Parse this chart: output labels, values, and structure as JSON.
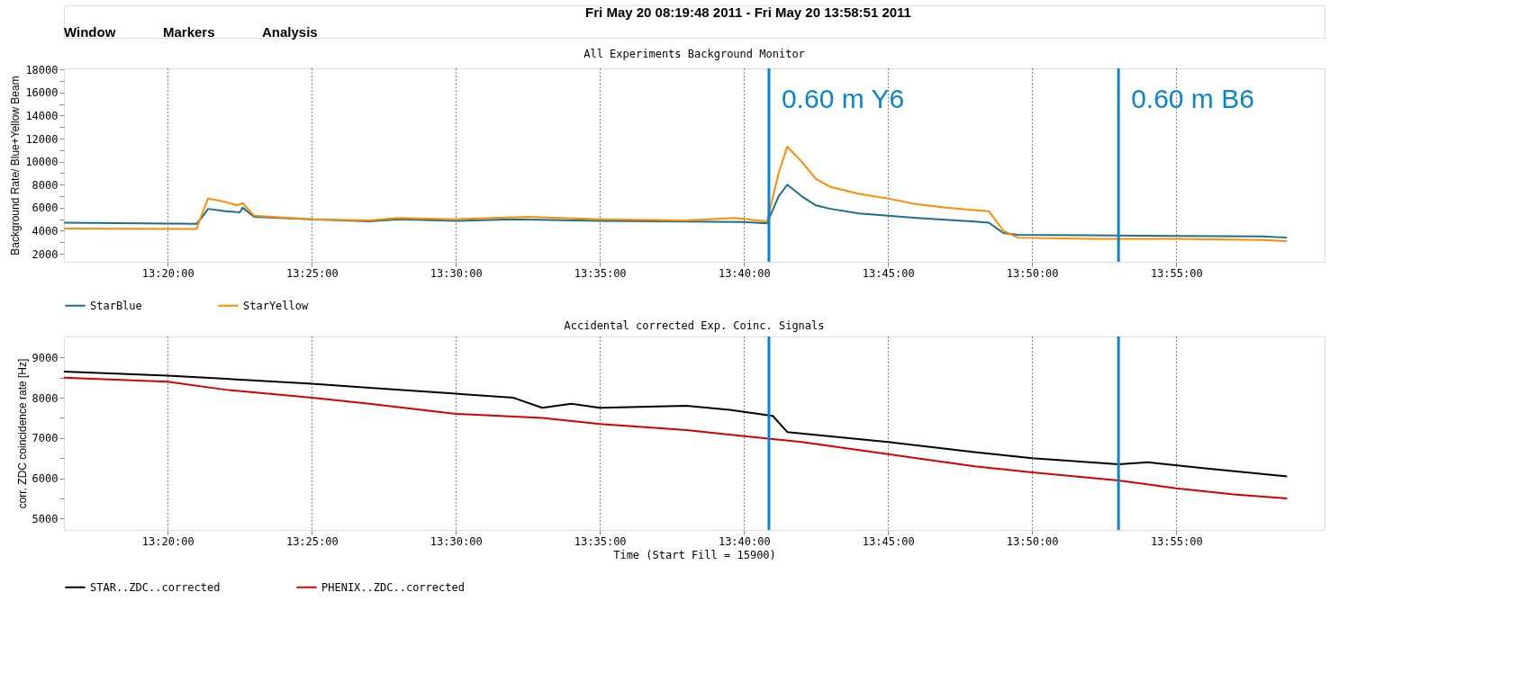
{
  "chart_data": [
    {
      "type": "line",
      "title": "All Experiments Background Monitor",
      "ylabel": "Background Rate/ Blue+Yellow Beam",
      "annotations": [
        "Fri May 20 08:19:48 2011 - Fri May 20 13:58:51 2011",
        "Window",
        "Markers",
        "Analysis"
      ],
      "series": [
        {
          "name": "StarBlue",
          "color": "#1a6e8e",
          "x": [
            13.2733,
            13.35,
            13.3533,
            13.3567,
            13.3667,
            13.375,
            13.3767,
            13.3833,
            13.4167,
            13.45,
            13.4667,
            13.5,
            13.5333,
            13.5833,
            13.6333,
            13.6667,
            13.68,
            13.6867,
            13.6917,
            13.7,
            13.7083,
            13.7167,
            13.7333,
            13.75,
            13.7667,
            13.7833,
            13.8,
            13.8083,
            13.8167,
            13.825,
            13.8667,
            13.9167,
            13.9667,
            13.9808
          ],
          "values": [
            4700,
            4600,
            5200,
            5900,
            5700,
            5600,
            6000,
            5200,
            5000,
            4820,
            5000,
            4850,
            5000,
            4850,
            4800,
            4750,
            4650,
            7000,
            8000,
            7000,
            6200,
            5900,
            5500,
            5300,
            5100,
            4950,
            4800,
            4700,
            3800,
            3650,
            3600,
            3550,
            3500,
            3400
          ]
        },
        {
          "name": "StarYellow",
          "color": "#ff8c00",
          "x": [
            13.2733,
            13.35,
            13.3533,
            13.3567,
            13.3667,
            13.3733,
            13.3767,
            13.3833,
            13.4167,
            13.45,
            13.4667,
            13.5,
            13.5417,
            13.5833,
            13.6333,
            13.6617,
            13.68,
            13.6867,
            13.6917,
            13.7,
            13.7083,
            13.7167,
            13.7333,
            13.75,
            13.7667,
            13.7833,
            13.8,
            13.8083,
            13.8167,
            13.825,
            13.8667,
            13.9167,
            13.9667,
            13.9808
          ],
          "values": [
            4200,
            4150,
            5500,
            6800,
            6500,
            6200,
            6400,
            5300,
            5000,
            4900,
            5100,
            5000,
            5200,
            5000,
            4900,
            5100,
            4800,
            9000,
            11300,
            10000,
            8500,
            7800,
            7200,
            6800,
            6300,
            6000,
            5800,
            5700,
            4000,
            3400,
            3300,
            3300,
            3200,
            3100
          ]
        }
      ],
      "xlim": [
        13.2733,
        14.0025
      ],
      "xticks": [
        {
          "value": 13.3333,
          "label": "13:20:00"
        },
        {
          "value": 13.4167,
          "label": "13:25:00"
        },
        {
          "value": 13.5,
          "label": "13:30:00"
        },
        {
          "value": 13.5833,
          "label": "13:35:00"
        },
        {
          "value": 13.6667,
          "label": "13:40:00"
        },
        {
          "value": 13.75,
          "label": "13:45:00"
        },
        {
          "value": 13.8333,
          "label": "13:50:00"
        },
        {
          "value": 13.9167,
          "label": "13:55:00"
        }
      ],
      "ylim": [
        1300,
        18100
      ],
      "yticks": [
        2000,
        {
          "value": 3000,
          "label": null
        },
        4000,
        {
          "value": 5000,
          "label": null
        },
        6000,
        {
          "value": 7000,
          "label": null
        },
        8000,
        {
          "value": 9000,
          "label": null
        },
        10000,
        {
          "value": 11000,
          "label": null
        },
        12000,
        {
          "value": 13000,
          "label": null
        },
        14000,
        {
          "value": 15000,
          "label": null
        },
        16000,
        {
          "value": 17000,
          "label": null
        },
        18000
      ],
      "ref_lines": [
        {
          "axis": "x",
          "value": 13.6811,
          "label": "0.60 m Y6",
          "color": "#0a84cc"
        },
        {
          "axis": "x",
          "value": 13.8833,
          "label": "0.60 m B6",
          "color": "#0a84cc"
        }
      ],
      "grid": "x",
      "legend": "bottom",
      "marker": "none",
      "line_style": "solid"
    },
    {
      "type": "line",
      "title": "Accidental corrected Exp. Coinc. Signals",
      "xlabel": "Time (Start Fill = 15900)",
      "ylabel": "corr. ZDC coincidence rate [Hz]",
      "series": [
        {
          "name": "STAR..ZDC..corrected",
          "color": "#000000",
          "x": [
            13.2733,
            13.3333,
            13.4167,
            13.45,
            13.5,
            13.5333,
            13.55,
            13.5667,
            13.5833,
            13.6333,
            13.6583,
            13.6833,
            13.6917,
            13.75,
            13.8,
            13.8333,
            13.8833,
            13.9,
            13.9333,
            13.9808
          ],
          "values": [
            8650,
            8550,
            8350,
            8250,
            8100,
            8000,
            7750,
            7850,
            7750,
            7800,
            7700,
            7550,
            7150,
            6900,
            6650,
            6500,
            6350,
            6400,
            6250,
            6050
          ]
        },
        {
          "name": "PHENIX..ZDC..corrected",
          "color": "#d40000",
          "x": [
            13.2733,
            13.3333,
            13.3667,
            13.4167,
            13.45,
            13.5,
            13.55,
            13.5833,
            13.6333,
            13.6667,
            13.7,
            13.75,
            13.8,
            13.8333,
            13.8833,
            13.9167,
            13.95,
            13.9808
          ],
          "values": [
            8500,
            8400,
            8200,
            8000,
            7850,
            7600,
            7500,
            7350,
            7200,
            7050,
            6900,
            6600,
            6300,
            6150,
            5950,
            5750,
            5600,
            5500
          ]
        }
      ],
      "xlim": [
        13.2733,
        14.0025
      ],
      "xticks": [
        {
          "value": 13.3333,
          "label": "13:20:00"
        },
        {
          "value": 13.4167,
          "label": "13:25:00"
        },
        {
          "value": 13.5,
          "label": "13:30:00"
        },
        {
          "value": 13.5833,
          "label": "13:35:00"
        },
        {
          "value": 13.6667,
          "label": "13:40:00"
        },
        {
          "value": 13.75,
          "label": "13:45:00"
        },
        {
          "value": 13.8333,
          "label": "13:50:00"
        },
        {
          "value": 13.9167,
          "label": "13:55:00"
        }
      ],
      "ylim": [
        4720,
        9520
      ],
      "yticks": [
        5000,
        {
          "value": 5500,
          "label": null
        },
        6000,
        {
          "value": 6500,
          "label": null
        },
        7000,
        {
          "value": 7500,
          "label": null
        },
        8000,
        {
          "value": 8500,
          "label": null
        },
        9000
      ],
      "ref_lines": [
        {
          "axis": "x",
          "value": 13.6811,
          "color": "#0a84cc"
        },
        {
          "axis": "x",
          "value": 13.8833,
          "color": "#0a84cc"
        }
      ],
      "grid": "x",
      "legend": "bottom",
      "marker": "none",
      "line_style": "solid"
    }
  ]
}
